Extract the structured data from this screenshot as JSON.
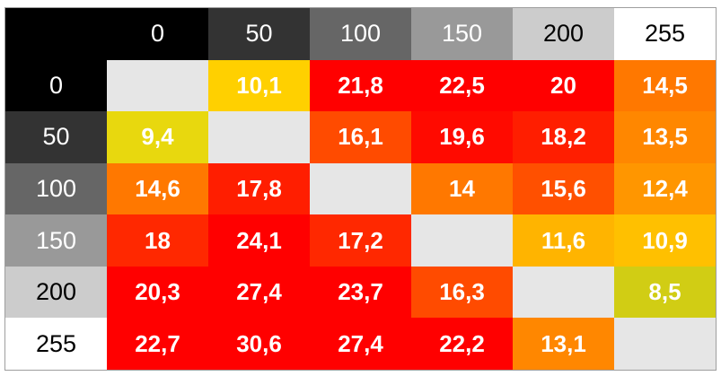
{
  "chart_data": {
    "type": "heatmap",
    "columns": [
      "0",
      "50",
      "100",
      "150",
      "200",
      "255"
    ],
    "rows": [
      "0",
      "50",
      "100",
      "150",
      "200",
      "255"
    ],
    "header_colors": [
      "#000000",
      "#333333",
      "#666666",
      "#999999",
      "#cccccc",
      "#ffffff"
    ],
    "header_text_colors": [
      "#ffffff",
      "#ffffff",
      "#ffffff",
      "#ffffff",
      "#000000",
      "#000000"
    ],
    "corner_color": "#000000",
    "diagonal_color": "#e6e6e6",
    "values": [
      [
        null,
        10.1,
        21.8,
        22.5,
        20,
        14.5
      ],
      [
        9.4,
        null,
        16.1,
        19.6,
        18.2,
        13.5
      ],
      [
        14.6,
        17.8,
        null,
        14,
        15.6,
        12.4
      ],
      [
        18,
        24.1,
        17.2,
        null,
        11.6,
        10.9
      ],
      [
        20.3,
        27.4,
        23.7,
        16.3,
        null,
        8.5
      ],
      [
        22.7,
        30.6,
        27.4,
        22.2,
        13.1,
        null
      ]
    ],
    "value_labels": [
      [
        "",
        "10,1",
        "21,8",
        "22,5",
        "20",
        "14,5"
      ],
      [
        "9,4",
        "",
        "16,1",
        "19,6",
        "18,2",
        "13,5"
      ],
      [
        "14,6",
        "17,8",
        "",
        "14",
        "15,6",
        "12,4"
      ],
      [
        "18",
        "24,1",
        "17,2",
        "",
        "11,6",
        "10,9"
      ],
      [
        "20,3",
        "27,4",
        "23,7",
        "16,3",
        "",
        "8,5"
      ],
      [
        "22,7",
        "30,6",
        "27,4",
        "22,2",
        "13,1",
        ""
      ]
    ],
    "cell_colors": [
      [
        "#e6e6e6",
        "#ffd000",
        "#ff0000",
        "#ff0000",
        "#ff0000",
        "#ff7800"
      ],
      [
        "#e8d80e",
        "#e6e6e6",
        "#ff4b00",
        "#ff0a00",
        "#ff1e00",
        "#ff8700"
      ],
      [
        "#ff7800",
        "#ff1e00",
        "#e6e6e6",
        "#ff7800",
        "#ff5000",
        "#ff9600"
      ],
      [
        "#ff2800",
        "#ff0000",
        "#ff2800",
        "#e6e6e6",
        "#ffb400",
        "#ffc000"
      ],
      [
        "#ff0000",
        "#ff0000",
        "#ff0000",
        "#ff4b00",
        "#e6e6e6",
        "#d1cd14"
      ],
      [
        "#ff0000",
        "#ff0000",
        "#ff0000",
        "#ff0000",
        "#ff8700",
        "#e6e6e6"
      ]
    ],
    "title": "",
    "xlabel": "",
    "ylabel": ""
  }
}
